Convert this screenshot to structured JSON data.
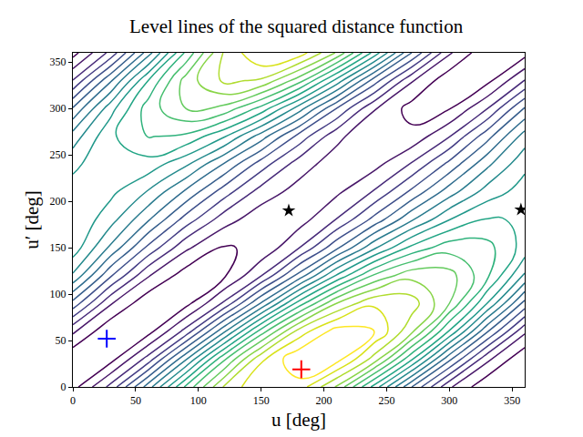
{
  "chart_data": {
    "type": "contour",
    "title": "Level lines of the squared distance function",
    "x_label": "u [deg]",
    "y_label": "u′ [deg]",
    "x": [
      0,
      30,
      60,
      90,
      120,
      150,
      180,
      210,
      240,
      270,
      300,
      330,
      360
    ],
    "y": [
      0,
      30,
      60,
      90,
      120,
      150,
      180,
      210,
      240,
      270,
      300,
      330,
      360
    ],
    "z": [
      [
        0.12,
        0.66,
        1.5,
        2.44,
        3.21,
        3.6,
        3.52,
        2.98,
        2.13,
        1.2,
        0.43,
        0.04,
        0.12
      ],
      [
        0.03,
        0.12,
        0.68,
        1.57,
        2.55,
        3.36,
        3.77,
        3.69,
        3.12,
        2.23,
        1.25,
        0.45,
        0.03
      ],
      [
        0.44,
        0.03,
        0.12,
        0.67,
        1.54,
        2.49,
        3.28,
        3.69,
        3.6,
        3.05,
        2.18,
        1.23,
        0.44
      ],
      [
        1.13,
        0.42,
        0.05,
        0.13,
        0.63,
        1.42,
        2.29,
        3.0,
        3.37,
        3.3,
        2.8,
        2.0,
        1.13
      ],
      [
        1.77,
        1.03,
        0.42,
        0.1,
        0.16,
        0.59,
        1.27,
        2.02,
        2.63,
        2.94,
        2.88,
        2.45,
        1.77
      ],
      [
        2.12,
        1.56,
        0.95,
        0.44,
        0.18,
        0.24,
        0.59,
        1.15,
        1.76,
        2.26,
        2.52,
        2.47,
        2.12
      ],
      [
        2.18,
        1.88,
        1.42,
        0.91,
        0.49,
        0.27,
        0.31,
        0.61,
        1.07,
        1.58,
        2.0,
        2.22,
        2.18
      ],
      [
        2.09,
        2.05,
        1.78,
        1.36,
        0.9,
        0.51,
        0.32,
        0.36,
        0.62,
        1.05,
        1.51,
        1.89,
        2.09
      ],
      [
        1.95,
        2.16,
        2.12,
        1.84,
        1.39,
        0.9,
        0.5,
        0.29,
        0.33,
        0.62,
        1.06,
        1.55,
        1.95
      ],
      [
        1.69,
        2.16,
        2.41,
        2.36,
        2.03,
        1.5,
        0.93,
        0.46,
        0.21,
        0.26,
        0.59,
        1.12,
        1.69
      ],
      [
        1.22,
        1.92,
        2.5,
        2.8,
        2.74,
        2.33,
        1.7,
        1.0,
        0.42,
        0.12,
        0.19,
        0.59,
        1.22
      ],
      [
        0.61,
        1.37,
        2.2,
        2.89,
        3.24,
        3.17,
        2.69,
        1.93,
        1.1,
        0.42,
        0.06,
        0.14,
        0.61
      ],
      [
        0.12,
        0.66,
        1.5,
        2.44,
        3.21,
        3.6,
        3.52,
        2.98,
        2.13,
        1.2,
        0.43,
        0.04,
        0.12
      ]
    ],
    "xlim": [
      0,
      360
    ],
    "ylim": [
      0,
      360
    ],
    "xticks": [
      0,
      50,
      100,
      150,
      200,
      250,
      300,
      350
    ],
    "yticks": [
      0,
      50,
      100,
      150,
      200,
      250,
      300,
      350
    ],
    "grid": false,
    "series": [
      {
        "type": "scatter",
        "marker": "star",
        "color": "#000000",
        "x": [
          172,
          357
        ],
        "y": [
          190,
          191
        ]
      },
      {
        "type": "scatter",
        "marker": "cross",
        "color": "#ff0000",
        "x": [
          182
        ],
        "y": [
          19
        ]
      },
      {
        "type": "scatter",
        "marker": "cross",
        "color": "#0000ff",
        "x": [
          27
        ],
        "y": [
          52
        ]
      }
    ]
  }
}
